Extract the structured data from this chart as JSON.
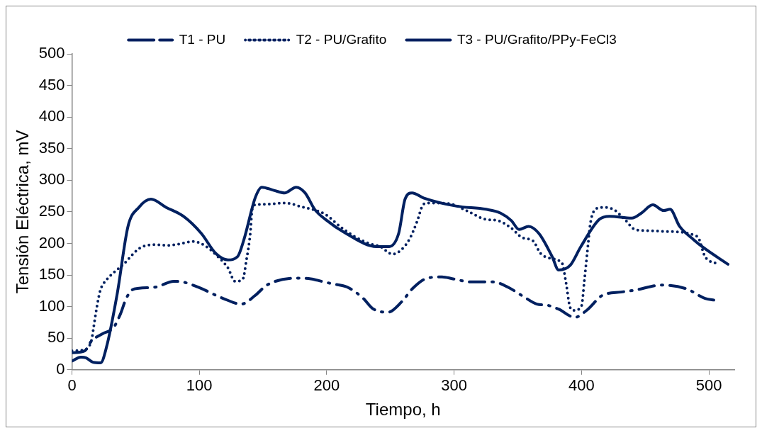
{
  "chart_data": {
    "type": "line",
    "xlabel": "Tiempo, h",
    "ylabel": "Tensión Eléctrica, mV",
    "xlim": [
      0,
      520
    ],
    "xticks": [
      0,
      100,
      200,
      300,
      400,
      500
    ],
    "ylim": [
      0,
      500
    ],
    "yticks": [
      0,
      50,
      100,
      150,
      200,
      250,
      300,
      350,
      400,
      450,
      500
    ],
    "grid": false,
    "legend": "top",
    "marker": "none",
    "series": [
      {
        "name": "T1 - PU",
        "color": "#002060",
        "line_style": "dashed",
        "x": [
          0,
          10,
          15.5,
          24,
          32.7,
          38,
          42.4,
          47,
          52.7,
          66,
          80,
          87,
          100,
          118.6,
          133,
          144,
          153,
          176,
          187.5,
          196,
          204.6,
          216,
          228.7,
          236,
          248,
          259,
          267.6,
          279,
          290.5,
          299,
          313.5,
          330.7,
          342,
          353.6,
          365,
          373.6,
          382,
          394.8,
          404,
          416.6,
          431,
          442,
          462.5,
          482.5,
          497,
          505
        ],
        "values": [
          27,
          30,
          46,
          57,
          67,
          88,
          112,
          126,
          129,
          131,
          140,
          139,
          130,
          113,
          104,
          118,
          134,
          145,
          144,
          140,
          136,
          131,
          113,
          97,
          91,
          108,
          129,
          145,
          147,
          144,
          139,
          139,
          131,
          117,
          104,
          102,
          96,
          83,
          94,
          118,
          123,
          126,
          134,
          128,
          113,
          110
        ]
      },
      {
        "name": "T2 - PU/Grafito",
        "color": "#002060",
        "line_style": "dotted",
        "x": [
          0,
          10,
          12.6,
          15.5,
          17,
          19.5,
          22.3,
          27,
          34,
          41,
          46,
          52.7,
          64,
          75.6,
          84,
          95,
          104,
          113,
          122.5,
          128,
          134,
          137,
          140,
          141.5,
          144,
          153,
          167,
          182,
          188.5,
          199,
          210.3,
          221.8,
          233,
          242,
          251.6,
          258,
          265,
          271,
          275,
          279,
          296,
          310.6,
          325,
          334.7,
          345,
          353.6,
          362,
          367.9,
          383,
          385,
          388,
          391,
          394,
          400,
          402.3,
          405,
          407,
          411,
          416.6,
          425,
          434,
          442,
          453.8,
          465,
          491,
          497,
          506
        ],
        "values": [
          30,
          32,
          35,
          48,
          67,
          99,
          126,
          142,
          156,
          168,
          179,
          192,
          198,
          197,
          199,
          203,
          197,
          182,
          161,
          140,
          143,
          174,
          216,
          254,
          261,
          262,
          264,
          257,
          254,
          246,
          227,
          211,
          200,
          195,
          183,
          189,
          207,
          235,
          259,
          264,
          263,
          251,
          238,
          236,
          224,
          209,
          204,
          184,
          172,
          168,
          136,
          99,
          94,
          101,
          142,
          195,
          232,
          254,
          257,
          254,
          238,
          222,
          220,
          219,
          211,
          179,
          168
        ]
      },
      {
        "name": "T3 - PU/Grafito/PPy-FeCl3",
        "color": "#002060",
        "line_style": "solid",
        "x": [
          0,
          7,
          11,
          16.5,
          22.5,
          27,
          35.5,
          44,
          52.5,
          62,
          74,
          87.5,
          101.5,
          113,
          122.5,
          130,
          135,
          144,
          149,
          158.5,
          167,
          176,
          183,
          190.5,
          199,
          215,
          239,
          249,
          256.5,
          261.5,
          267,
          276,
          302,
          325,
          336.5,
          345,
          351,
          358.5,
          366.5,
          377,
          382,
          391,
          399.5,
          414,
          422,
          439.5,
          447,
          456,
          464.5,
          469.5,
          477,
          488,
          496,
          515
        ],
        "values": [
          14,
          20,
          19,
          12,
          11,
          35,
          120,
          227,
          257,
          270,
          257,
          243,
          216,
          184,
          174,
          179,
          206,
          273,
          289,
          284,
          280,
          289,
          280,
          254,
          238,
          216,
          195,
          195,
          216,
          270,
          280,
          272,
          259,
          254,
          248,
          236,
          222,
          227,
          216,
          179,
          158,
          165,
          195,
          238,
          243,
          240,
          248,
          261,
          252,
          254,
          227,
          206,
          193,
          167
        ]
      }
    ]
  }
}
